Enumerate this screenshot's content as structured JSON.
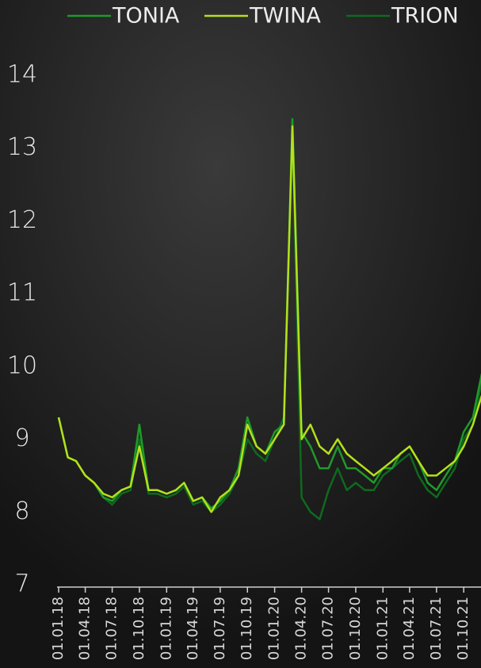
{
  "chart_data": {
    "type": "line",
    "x": [
      "01.01.18",
      "01.02.18",
      "01.03.18",
      "01.04.18",
      "01.05.18",
      "01.06.18",
      "01.07.18",
      "01.08.18",
      "01.09.18",
      "01.10.18",
      "01.11.18",
      "01.12.18",
      "01.01.19",
      "01.02.19",
      "01.03.19",
      "01.04.19",
      "01.05.19",
      "01.06.19",
      "01.07.19",
      "01.08.19",
      "01.09.19",
      "01.10.19",
      "01.11.19",
      "01.12.19",
      "01.01.20",
      "01.02.20",
      "01.03.20",
      "01.04.20",
      "01.05.20",
      "01.06.20",
      "01.07.20",
      "01.08.20",
      "01.09.20",
      "01.10.20",
      "01.11.20",
      "01.12.20",
      "01.01.21",
      "01.02.21",
      "01.03.21",
      "01.04.21",
      "01.05.21",
      "01.06.21",
      "01.07.21",
      "01.08.21",
      "01.09.21",
      "01.10.21",
      "01.11.21",
      "01.12.21"
    ],
    "series": [
      {
        "name": "TONIA",
        "color": "#1f9a2a",
        "values": [
          9.3,
          8.75,
          8.7,
          8.5,
          8.4,
          8.2,
          8.15,
          8.3,
          8.35,
          9.2,
          8.3,
          8.3,
          8.25,
          8.3,
          8.4,
          8.15,
          8.2,
          8.05,
          8.15,
          8.3,
          8.6,
          9.3,
          8.9,
          8.8,
          9.1,
          9.2,
          13.4,
          9.1,
          8.9,
          8.6,
          8.6,
          8.9,
          8.6,
          8.6,
          8.5,
          8.4,
          8.6,
          8.6,
          8.8,
          8.9,
          8.7,
          8.4,
          8.3,
          8.5,
          8.7,
          9.1,
          9.3,
          9.9
        ]
      },
      {
        "name": "TWINA",
        "color": "#b5e01a",
        "values": [
          9.3,
          8.75,
          8.7,
          8.5,
          8.4,
          8.25,
          8.2,
          8.3,
          8.35,
          8.9,
          8.3,
          8.3,
          8.25,
          8.3,
          8.4,
          8.15,
          8.2,
          8.0,
          8.2,
          8.3,
          8.5,
          9.2,
          8.9,
          8.8,
          9.0,
          9.2,
          13.3,
          9.0,
          9.2,
          8.9,
          8.8,
          9.0,
          8.8,
          8.7,
          8.6,
          8.5,
          8.6,
          8.7,
          8.8,
          8.9,
          8.7,
          8.5,
          8.5,
          8.6,
          8.7,
          8.9,
          9.2,
          9.6
        ]
      },
      {
        "name": "TRION",
        "color": "#0e6a1e",
        "values": [
          9.3,
          8.75,
          8.7,
          8.5,
          8.4,
          8.2,
          8.1,
          8.25,
          8.3,
          9.0,
          8.25,
          8.25,
          8.2,
          8.25,
          8.35,
          8.1,
          8.15,
          8.0,
          8.1,
          8.25,
          8.5,
          9.0,
          8.8,
          8.7,
          9.0,
          9.3,
          13.2,
          8.2,
          8.0,
          7.9,
          8.3,
          8.6,
          8.3,
          8.4,
          8.3,
          8.3,
          8.5,
          8.6,
          8.7,
          8.8,
          8.5,
          8.3,
          8.2,
          8.4,
          8.6,
          9.0,
          9.2,
          9.8
        ]
      }
    ],
    "xlim": [
      "01.01.18",
      "01.12.21"
    ],
    "xticks": [
      "01.01.18",
      "01.04.18",
      "01.07.18",
      "01.10.18",
      "01.01.19",
      "01.04.19",
      "01.07.19",
      "01.10.19",
      "01.01.20",
      "01.04.20",
      "01.07.20",
      "01.10.20",
      "01.01.21",
      "01.04.21",
      "01.07.21",
      "01.10.21"
    ],
    "ylim": [
      7,
      14
    ],
    "yticks": [
      7,
      8,
      9,
      10,
      11,
      12,
      13,
      14
    ]
  }
}
